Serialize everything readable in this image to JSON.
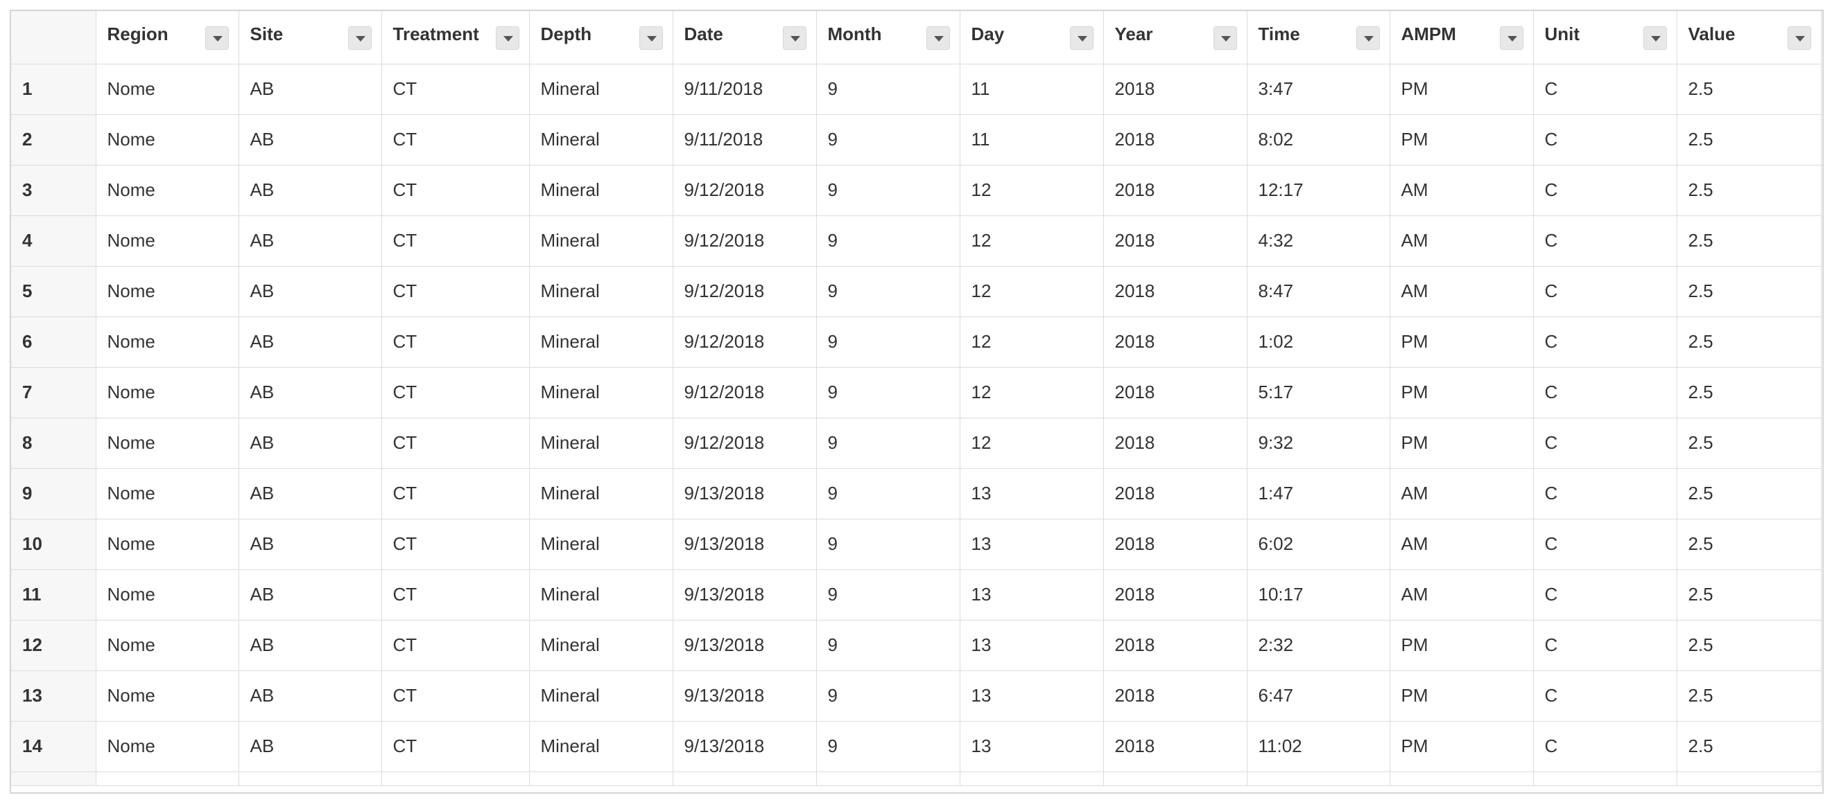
{
  "columns": [
    "",
    "Region",
    "Site",
    "Treatment",
    "Depth",
    "Date",
    "Month",
    "Day",
    "Year",
    "Time",
    "AMPM",
    "Unit",
    "Value"
  ],
  "rows": [
    [
      "1",
      "Nome",
      "AB",
      "CT",
      "Mineral",
      "9/11/2018",
      "9",
      "11",
      "2018",
      "3:47",
      "PM",
      "C",
      "2.5"
    ],
    [
      "2",
      "Nome",
      "AB",
      "CT",
      "Mineral",
      "9/11/2018",
      "9",
      "11",
      "2018",
      "8:02",
      "PM",
      "C",
      "2.5"
    ],
    [
      "3",
      "Nome",
      "AB",
      "CT",
      "Mineral",
      "9/12/2018",
      "9",
      "12",
      "2018",
      "12:17",
      "AM",
      "C",
      "2.5"
    ],
    [
      "4",
      "Nome",
      "AB",
      "CT",
      "Mineral",
      "9/12/2018",
      "9",
      "12",
      "2018",
      "4:32",
      "AM",
      "C",
      "2.5"
    ],
    [
      "5",
      "Nome",
      "AB",
      "CT",
      "Mineral",
      "9/12/2018",
      "9",
      "12",
      "2018",
      "8:47",
      "AM",
      "C",
      "2.5"
    ],
    [
      "6",
      "Nome",
      "AB",
      "CT",
      "Mineral",
      "9/12/2018",
      "9",
      "12",
      "2018",
      "1:02",
      "PM",
      "C",
      "2.5"
    ],
    [
      "7",
      "Nome",
      "AB",
      "CT",
      "Mineral",
      "9/12/2018",
      "9",
      "12",
      "2018",
      "5:17",
      "PM",
      "C",
      "2.5"
    ],
    [
      "8",
      "Nome",
      "AB",
      "CT",
      "Mineral",
      "9/12/2018",
      "9",
      "12",
      "2018",
      "9:32",
      "PM",
      "C",
      "2.5"
    ],
    [
      "9",
      "Nome",
      "AB",
      "CT",
      "Mineral",
      "9/13/2018",
      "9",
      "13",
      "2018",
      "1:47",
      "AM",
      "C",
      "2.5"
    ],
    [
      "10",
      "Nome",
      "AB",
      "CT",
      "Mineral",
      "9/13/2018",
      "9",
      "13",
      "2018",
      "6:02",
      "AM",
      "C",
      "2.5"
    ],
    [
      "11",
      "Nome",
      "AB",
      "CT",
      "Mineral",
      "9/13/2018",
      "9",
      "13",
      "2018",
      "10:17",
      "AM",
      "C",
      "2.5"
    ],
    [
      "12",
      "Nome",
      "AB",
      "CT",
      "Mineral",
      "9/13/2018",
      "9",
      "13",
      "2018",
      "2:32",
      "PM",
      "C",
      "2.5"
    ],
    [
      "13",
      "Nome",
      "AB",
      "CT",
      "Mineral",
      "9/13/2018",
      "9",
      "13",
      "2018",
      "6:47",
      "PM",
      "C",
      "2.5"
    ],
    [
      "14",
      "Nome",
      "AB",
      "CT",
      "Mineral",
      "9/13/2018",
      "9",
      "13",
      "2018",
      "11:02",
      "PM",
      "C",
      "2.5"
    ]
  ],
  "icons": {
    "column_menu": "chevron-down-icon"
  },
  "colors": {
    "grid_line": "#dcdcdc",
    "index_bg": "#f7f7f7",
    "text": "#333333"
  }
}
